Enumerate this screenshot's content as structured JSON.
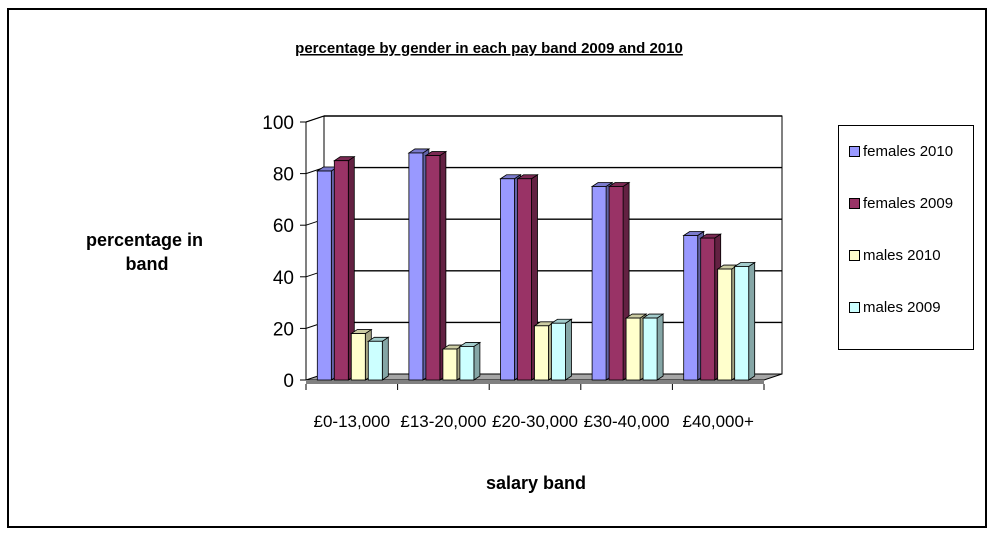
{
  "chart_data": {
    "type": "bar",
    "title": "percentage by gender in each pay band 2009 and 2010",
    "xlabel": "salary band",
    "ylabel": "percentage in band",
    "ylim": [
      0,
      100
    ],
    "yticks": [
      "0",
      "20",
      "40",
      "60",
      "80",
      "100"
    ],
    "grid": true,
    "legend_position": "right",
    "categories": [
      "£0-13,000",
      "£13-20,000",
      "£20-30,000",
      "£30-40,000",
      "£40,000+"
    ],
    "series": [
      {
        "name": "females 2010",
        "color": "#9999ff",
        "values": [
          81,
          88,
          78,
          75,
          56
        ]
      },
      {
        "name": "females 2009",
        "color": "#993366",
        "values": [
          85,
          87,
          78,
          75,
          55
        ]
      },
      {
        "name": "males 2010",
        "color": "#ffffcc",
        "values": [
          18,
          12,
          21,
          24,
          43
        ]
      },
      {
        "name": "males 2009",
        "color": "#ccffff",
        "values": [
          15,
          13,
          22,
          24,
          44
        ]
      }
    ]
  }
}
